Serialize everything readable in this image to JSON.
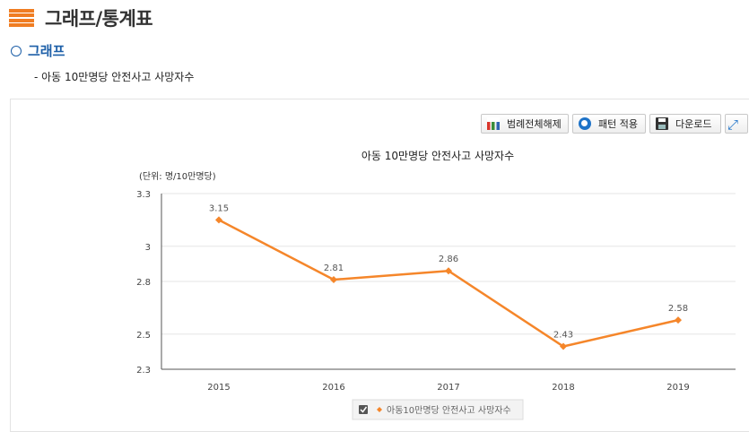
{
  "page": {
    "title": "그래프/통계표",
    "section": "그래프",
    "subtitle": "- 아동 10만명당 안전사고 사망자수"
  },
  "toolbar": {
    "legend_label": "범례전체해제",
    "pattern_label": "패턴 적용",
    "download_label": "다운로드"
  },
  "chart_data": {
    "type": "line",
    "title": "아동 10만명당 안전사고 사망자수",
    "unit_label": "(단위: 명/10만명당)",
    "categories": [
      "2015",
      "2016",
      "2017",
      "2018",
      "2019"
    ],
    "y_ticks": [
      "3.3",
      "3",
      "2.8",
      "2.5",
      "2.3"
    ],
    "ylim": [
      2.3,
      3.3
    ],
    "grid": true,
    "series": [
      {
        "name": "아동10만명당 안전사고 사망자수",
        "values": [
          3.15,
          2.81,
          2.86,
          2.43,
          2.58
        ],
        "labels": [
          "3.15",
          "2.81",
          "2.86",
          "2.43",
          "2.58"
        ],
        "color": "#f5862a"
      }
    ],
    "legend_position": "bottom-center"
  }
}
